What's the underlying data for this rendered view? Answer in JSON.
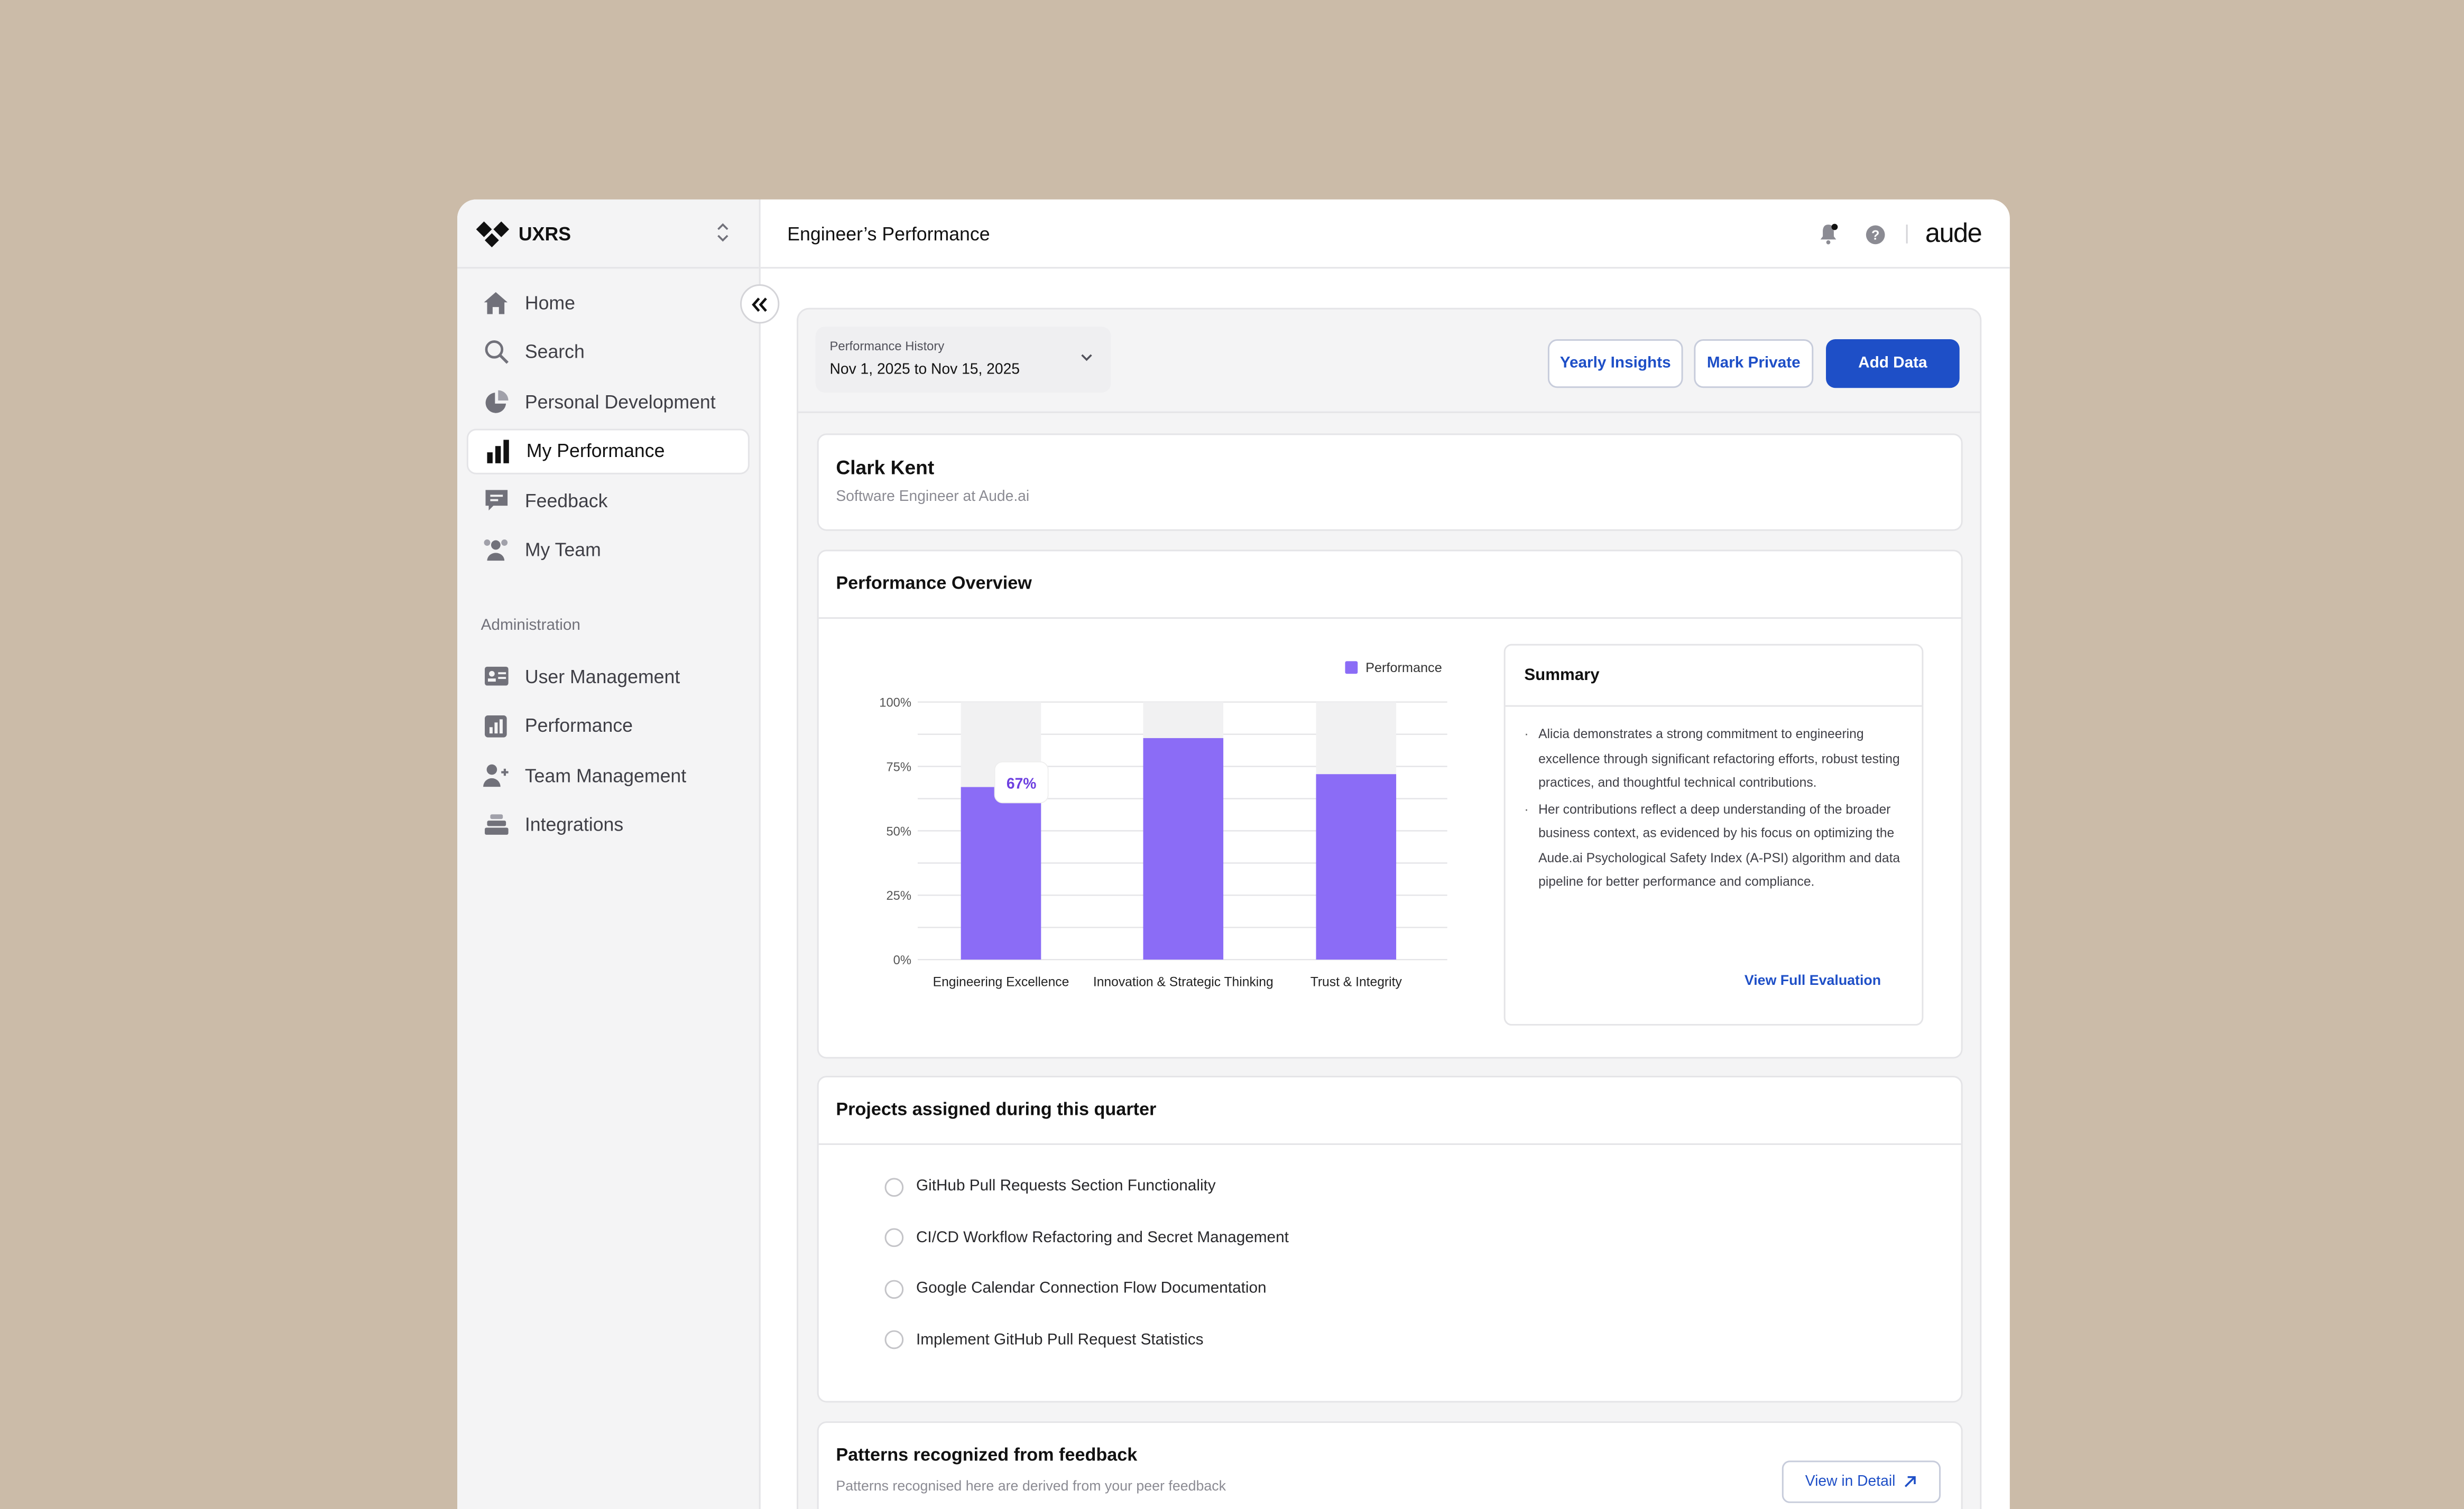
{
  "brand": {
    "name": "UXRS"
  },
  "sidebar": {
    "items": [
      {
        "label": "Home",
        "icon": "home-icon"
      },
      {
        "label": "Search",
        "icon": "search-icon"
      },
      {
        "label": "Personal Development",
        "icon": "pie-chart-icon"
      },
      {
        "label": "My Performance",
        "icon": "bar-chart-icon",
        "active": true
      },
      {
        "label": "Feedback",
        "icon": "message-icon"
      },
      {
        "label": "My Team",
        "icon": "team-icon"
      }
    ],
    "admin_heading": "Administration",
    "admin_items": [
      {
        "label": "User Management",
        "icon": "id-card-icon"
      },
      {
        "label": "Performance",
        "icon": "chart-square-icon"
      },
      {
        "label": "Team Management",
        "icon": "user-plus-icon"
      },
      {
        "label": "Integrations",
        "icon": "stack-icon"
      }
    ]
  },
  "topbar": {
    "title": "Engineer’s Performance",
    "logo_text": "aude"
  },
  "history": {
    "label": "Performance History",
    "value": "Nov 1, 2025 to Nov 15, 2025"
  },
  "actions": {
    "yearly": "Yearly Insights",
    "private": "Mark Private",
    "add": "Add Data"
  },
  "profile": {
    "name": "Clark Kent",
    "role": "Software Engineer at Aude.ai"
  },
  "overview": {
    "title": "Performance  Overview",
    "summary_title": "Summary",
    "summary_points": [
      "Alicia demonstrates a strong commitment to engineering excellence through significant refactoring efforts, robust testing practices, and thoughtful technical contributions.",
      "Her contributions reflect a deep understanding of the broader business context, as evidenced by his focus on optimizing the Aude.ai Psychological Safety Index (A-PSI) algorithm and data pipeline for better performance and compliance."
    ],
    "summary_link": "View Full Evaluation"
  },
  "chart_data": {
    "type": "bar",
    "categories": [
      "Engineering Excellence",
      "Innovation & Strategic Thinking",
      "Trust & Integrity"
    ],
    "series": [
      {
        "name": "Performance",
        "values": [
          67,
          86,
          72
        ]
      }
    ],
    "ylim": [
      0,
      100
    ],
    "yticks": [
      "0%",
      "25%",
      "50%",
      "75%",
      "100%"
    ],
    "annotation": "67%",
    "legend_position": "top-right",
    "grid": true,
    "bar_color": "#8b6cf6",
    "track_color": "#f1f1f2"
  },
  "projects": {
    "title": "Projects assigned during this quarter",
    "items": [
      "GitHub Pull Requests Section Functionality",
      "CI/CD Workflow Refactoring and Secret Management",
      "Google Calendar Connection Flow Documentation",
      "Implement GitHub Pull Request Statistics"
    ]
  },
  "patterns": {
    "title": "Patterns recognized from feedback",
    "subtitle": "Patterns recognised  here are derived from your peer feedback",
    "button": "View in Detail"
  }
}
